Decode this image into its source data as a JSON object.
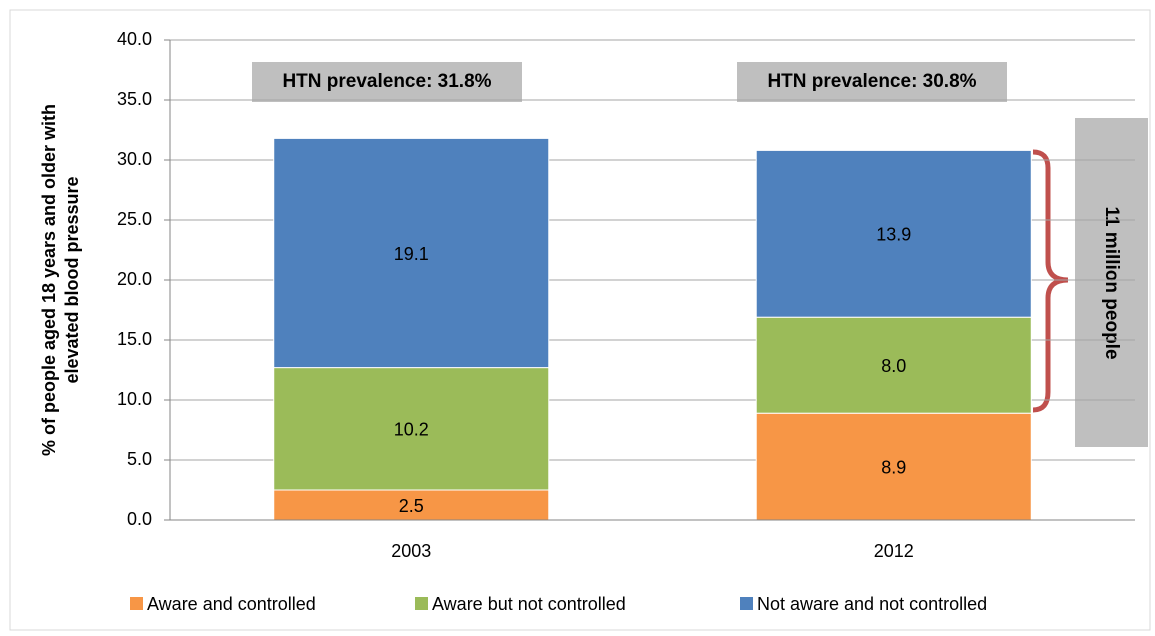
{
  "chart_data": {
    "type": "stacked-bar",
    "ylabel": [
      "% of people aged 18 years and older  with",
      "elevated blood pressure"
    ],
    "categories": [
      "2003",
      "2012"
    ],
    "series": [
      {
        "name": "Aware and controlled",
        "color": "#f79646",
        "values": [
          2.5,
          8.9
        ],
        "value_labels": [
          "2.5",
          "8.9"
        ]
      },
      {
        "name": "Aware but not controlled",
        "color": "#9bbb59",
        "values": [
          10.2,
          8.0
        ],
        "value_labels": [
          "10.2",
          "8.0"
        ]
      },
      {
        "name": "Not aware and not controlled",
        "color": "#4f81bd",
        "values": [
          19.1,
          13.9
        ],
        "value_labels": [
          "19.1",
          "13.9"
        ]
      }
    ],
    "ylim": [
      0,
      40
    ],
    "yticks": [
      {
        "value": 0,
        "label": "0.0"
      },
      {
        "value": 5,
        "label": "5.0"
      },
      {
        "value": 10,
        "label": "10.0"
      },
      {
        "value": 15,
        "label": "15.0"
      },
      {
        "value": 20,
        "label": "20.0"
      },
      {
        "value": 25,
        "label": "25.0"
      },
      {
        "value": 30,
        "label": "30.0"
      },
      {
        "value": 35,
        "label": "35.0"
      },
      {
        "value": 40,
        "label": "40.0"
      }
    ],
    "grid": true,
    "annotations": [
      "HTN prevalence: 31.8%",
      "HTN prevalence: 30.8%",
      "11 million people"
    ]
  }
}
